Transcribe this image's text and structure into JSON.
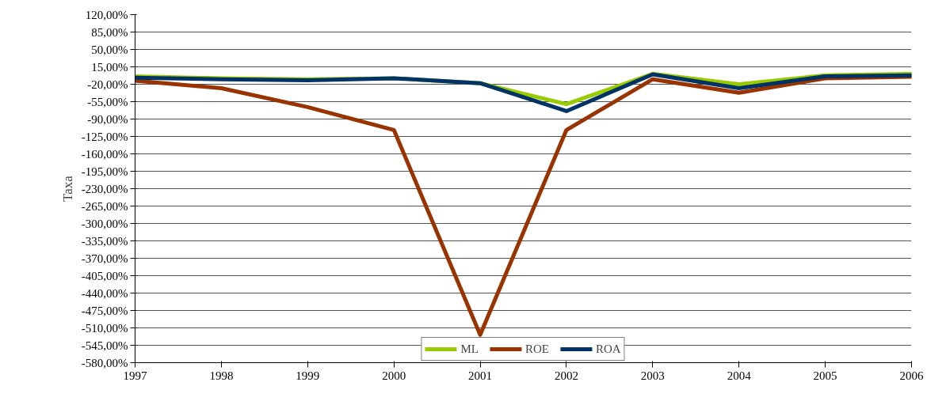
{
  "chart_data": {
    "type": "line",
    "ylabel": "Taxa",
    "categories": [
      "1997",
      "1998",
      "1999",
      "2000",
      "2001",
      "2002",
      "2003",
      "2004",
      "2005",
      "2006"
    ],
    "series": [
      {
        "name": "ML",
        "color": "#99cc00",
        "values": [
          -4,
          -8,
          -10,
          -8,
          -18,
          -60,
          1,
          -20,
          -2,
          1
        ]
      },
      {
        "name": "ROE",
        "color": "#993300",
        "values": [
          -13,
          -28,
          -66,
          -112,
          -524,
          -112,
          -10,
          -37,
          -8,
          -5
        ]
      },
      {
        "name": "ROA",
        "color": "#003366",
        "values": [
          -7,
          -10,
          -12,
          -8,
          -18,
          -74,
          0,
          -28,
          -4,
          -2
        ]
      }
    ],
    "ylim": [
      -580,
      120
    ],
    "yticks": [
      {
        "value": 120,
        "label": "120,00%"
      },
      {
        "value": 85,
        "label": "85,00%"
      },
      {
        "value": 50,
        "label": "50,00%"
      },
      {
        "value": 15,
        "label": "15,00%"
      },
      {
        "value": -20,
        "label": "-20,00%"
      },
      {
        "value": -55,
        "label": "-55,00%"
      },
      {
        "value": -90,
        "label": "-90,00%"
      },
      {
        "value": -125,
        "label": "-125,00%"
      },
      {
        "value": -160,
        "label": "-160,00%"
      },
      {
        "value": -195,
        "label": "-195,00%"
      },
      {
        "value": -230,
        "label": "-230,00%"
      },
      {
        "value": -265,
        "label": "-265,00%"
      },
      {
        "value": -300,
        "label": "-300,00%"
      },
      {
        "value": -335,
        "label": "-335,00%"
      },
      {
        "value": -370,
        "label": "-370,00%"
      },
      {
        "value": -405,
        "label": "-405,00%"
      },
      {
        "value": -440,
        "label": "-440,00%"
      },
      {
        "value": -475,
        "label": "-475,00%"
      },
      {
        "value": -510,
        "label": "-510,00%"
      },
      {
        "value": -545,
        "label": "-545,00%"
      },
      {
        "value": -580,
        "label": "-580,00%"
      }
    ],
    "grid": "y",
    "legend": "bottom",
    "marker": "none",
    "line_style": "solid"
  }
}
